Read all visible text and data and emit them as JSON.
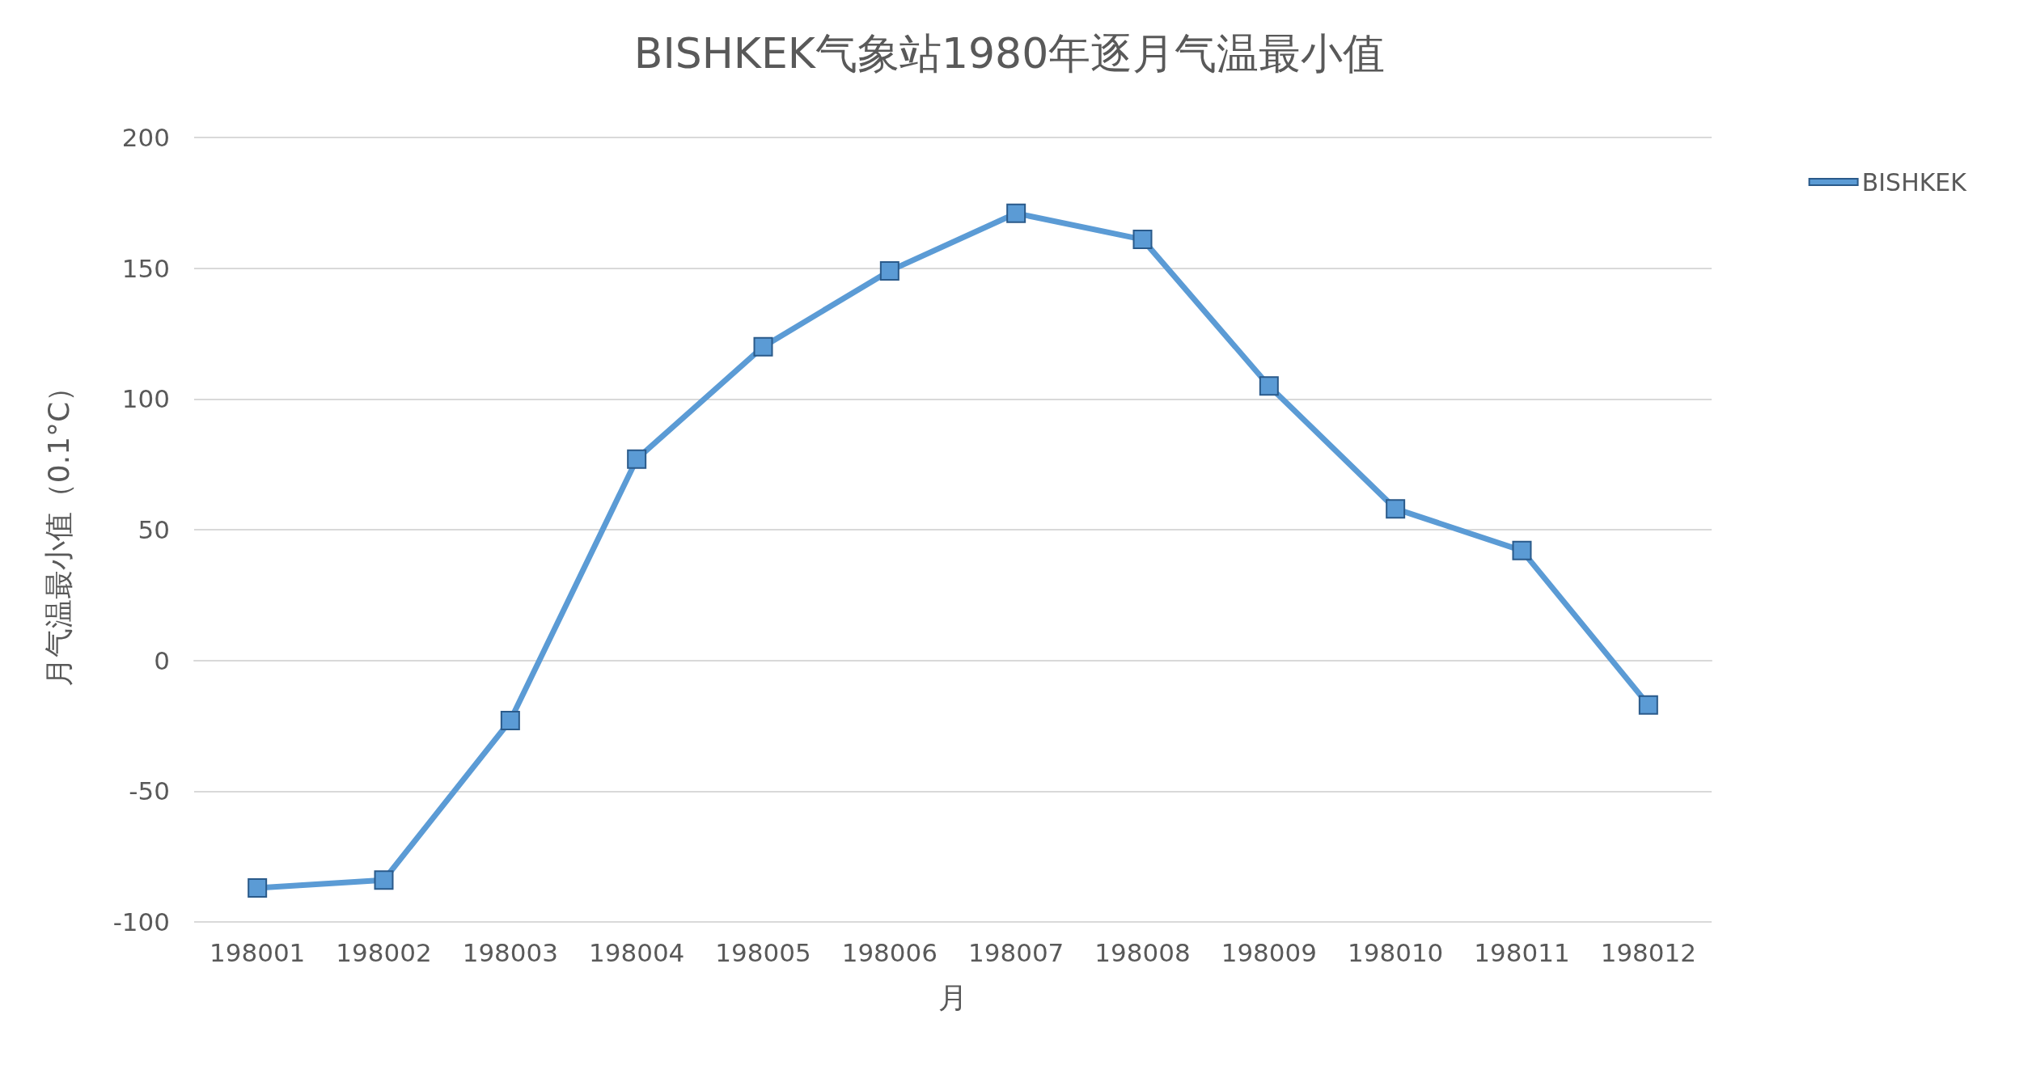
{
  "chart_data": {
    "type": "line",
    "title": "BISHKEK气象站1980年逐月气温最小值",
    "xlabel": "月",
    "ylabel": "月气温最小值（0.1°C）",
    "categories": [
      "198001",
      "198002",
      "198003",
      "198004",
      "198005",
      "198006",
      "198007",
      "198008",
      "198009",
      "198010",
      "198011",
      "198012"
    ],
    "series": [
      {
        "name": "BISHKEK",
        "color": "#5b9bd5",
        "values": [
          -87,
          -84,
          -23,
          77,
          120,
          149,
          171,
          161,
          105,
          58,
          42,
          -17
        ]
      }
    ],
    "ylim": [
      -100,
      200
    ],
    "yticks": [
      -100,
      -50,
      0,
      50,
      100,
      150,
      200
    ],
    "grid": "y",
    "legend": "top right",
    "marker": "square",
    "line_style": "solid"
  }
}
